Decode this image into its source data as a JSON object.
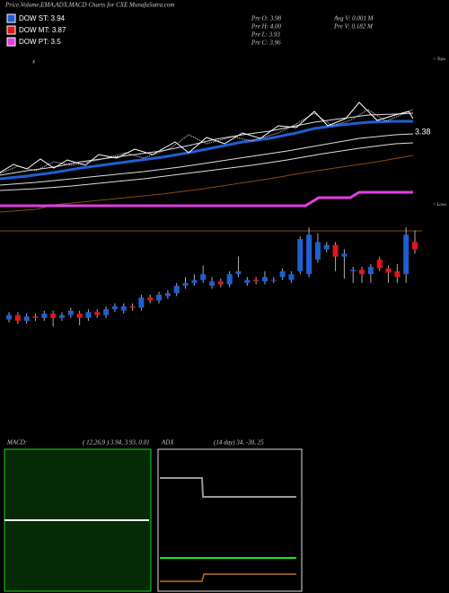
{
  "header": {
    "title": "Price,Volume,EMA,ADX,MACD Charts for CXE MunafaSutra.com",
    "legend": [
      "DOW ST: 3.94",
      "DOW MT: 3.87",
      "DOW PT: 3.5"
    ],
    "stats": [
      "Pre O: 3.98",
      "Pre H: 4.00",
      "Pre L: 3.93",
      "Pre C: 3.96",
      "Avg V: 0.001 M",
      "Pre V: 0.182 M"
    ],
    "level": "3.38",
    "tops": "< Tops",
    "lows": "< Lows"
  },
  "chart_data": {
    "type": "candlestick",
    "ylim": [
      3.25,
      4.05
    ],
    "up_color": "#1f5fd0",
    "down_color": "#e0161b",
    "series": {
      "open": [
        3.37,
        3.4,
        3.36,
        3.39,
        3.38,
        3.41,
        3.38,
        3.4,
        3.41,
        3.38,
        3.42,
        3.4,
        3.44,
        3.43,
        3.46,
        3.45,
        3.52,
        3.5,
        3.53,
        3.55,
        3.6,
        3.62,
        3.64,
        3.6,
        3.63,
        3.61,
        3.68,
        3.62,
        3.64,
        3.63,
        3.64,
        3.66,
        3.64,
        3.7,
        3.68,
        3.78,
        3.85,
        3.88,
        3.8,
        3.7,
        3.71,
        3.68,
        3.78,
        3.72,
        3.7,
        3.68,
        3.9
      ],
      "high": [
        3.42,
        3.42,
        3.41,
        3.41,
        3.43,
        3.43,
        3.42,
        3.45,
        3.43,
        3.44,
        3.44,
        3.46,
        3.48,
        3.48,
        3.48,
        3.54,
        3.54,
        3.56,
        3.57,
        3.62,
        3.66,
        3.68,
        3.74,
        3.66,
        3.65,
        3.7,
        3.8,
        3.66,
        3.66,
        3.7,
        3.66,
        3.72,
        3.7,
        3.94,
        4.0,
        3.96,
        3.9,
        3.9,
        3.85,
        3.73,
        3.73,
        3.75,
        3.8,
        3.74,
        3.75,
        4.0,
        3.98
      ],
      "low": [
        3.35,
        3.34,
        3.34,
        3.36,
        3.36,
        3.32,
        3.36,
        3.38,
        3.33,
        3.36,
        3.38,
        3.38,
        3.42,
        3.41,
        3.43,
        3.43,
        3.48,
        3.48,
        3.51,
        3.53,
        3.58,
        3.6,
        3.62,
        3.58,
        3.59,
        3.59,
        3.66,
        3.6,
        3.61,
        3.61,
        3.62,
        3.64,
        3.62,
        3.68,
        3.66,
        3.76,
        3.83,
        3.7,
        3.65,
        3.62,
        3.62,
        3.62,
        3.7,
        3.62,
        3.62,
        3.62,
        3.82
      ],
      "close": [
        3.4,
        3.36,
        3.39,
        3.38,
        3.41,
        3.38,
        3.4,
        3.43,
        3.38,
        3.42,
        3.4,
        3.44,
        3.46,
        3.46,
        3.45,
        3.52,
        3.5,
        3.54,
        3.55,
        3.6,
        3.62,
        3.64,
        3.68,
        3.63,
        3.61,
        3.68,
        3.7,
        3.64,
        3.63,
        3.66,
        3.64,
        3.7,
        3.68,
        3.92,
        3.95,
        3.9,
        3.88,
        3.8,
        3.82,
        3.71,
        3.68,
        3.73,
        3.72,
        3.69,
        3.66,
        3.95,
        3.85
      ]
    }
  },
  "macd": {
    "label": "MACD:",
    "params": "( 12,26,9 ) 3.94, 3.93, 0.01"
  },
  "adx": {
    "label": "ADX",
    "params": "(14 day) 34, -30, 25"
  }
}
